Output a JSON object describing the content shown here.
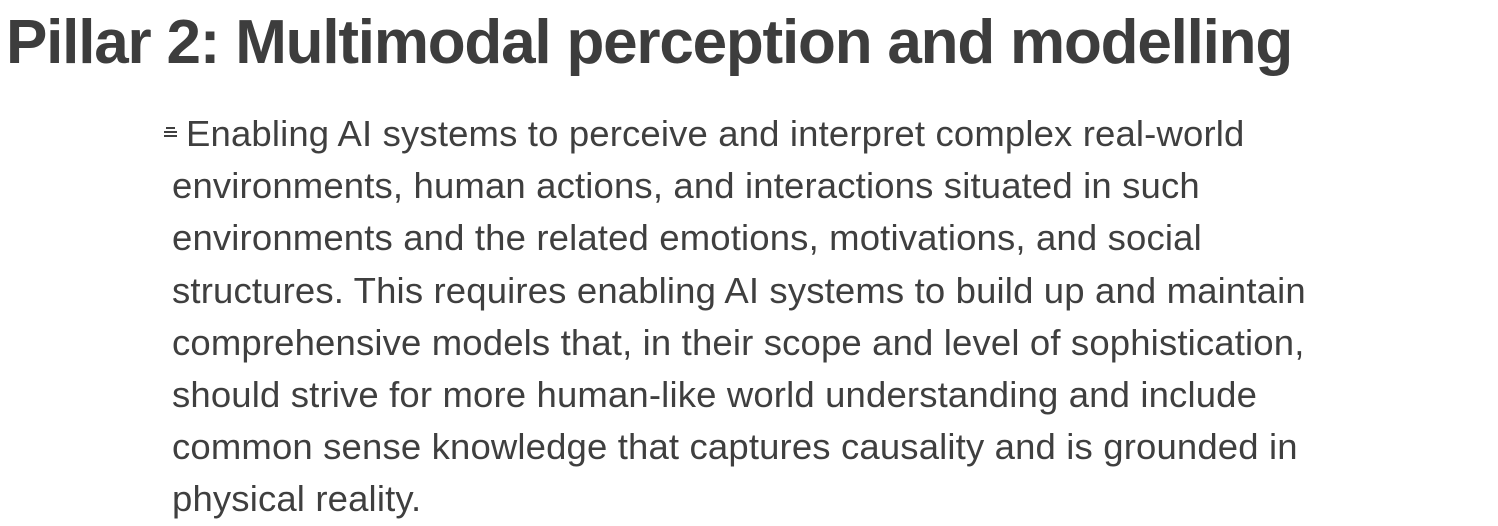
{
  "title": "Pillar 2: Multimodal perception and modelling",
  "bullet_icon": "list-bullet-icon",
  "paragraph": {
    "lines": [
      "Enabling AI systems to perceive and interpret complex real-world",
      "environments, human actions, and interactions situated in such",
      "environments and the related emotions, motivations, and social",
      "structures. This requires enabling AI systems to build up and maintain",
      "comprehensive models that, in their scope and level of sophistication,",
      "should strive for more human-like world understanding and include",
      "common sense knowledge that captures causality and is grounded in",
      "physical reality."
    ]
  }
}
